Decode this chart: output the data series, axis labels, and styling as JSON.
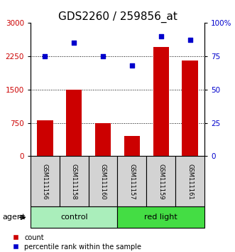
{
  "title": "GDS2260 / 259856_at",
  "samples": [
    "GSM111156",
    "GSM111158",
    "GSM111160",
    "GSM111157",
    "GSM111159",
    "GSM111161"
  ],
  "counts": [
    800,
    1500,
    750,
    450,
    2450,
    2150
  ],
  "percentiles": [
    75,
    85,
    75,
    68,
    90,
    87
  ],
  "groups": [
    {
      "label": "control",
      "start": 0,
      "end": 3,
      "color": "#AAEEBB"
    },
    {
      "label": "red light",
      "start": 3,
      "end": 6,
      "color": "#44DD44"
    }
  ],
  "bar_color": "#CC0000",
  "dot_color": "#0000CC",
  "left_yticks": [
    0,
    750,
    1500,
    2250,
    3000
  ],
  "right_yticks": [
    0,
    25,
    50,
    75,
    100
  ],
  "right_yticklabels": [
    "0",
    "25",
    "50",
    "75",
    "100%"
  ],
  "ylim_left": [
    0,
    3000
  ],
  "ylim_right": [
    0,
    100
  ],
  "grid_lines": [
    750,
    1500,
    2250
  ],
  "title_fontsize": 11,
  "tick_label_color_left": "#CC0000",
  "tick_label_color_right": "#0000CC",
  "label_count": "count",
  "label_percentile": "percentile rank within the sample",
  "agent_label": "agent",
  "bg_color": "#FFFFFF",
  "sample_box_color": "#D3D3D3"
}
